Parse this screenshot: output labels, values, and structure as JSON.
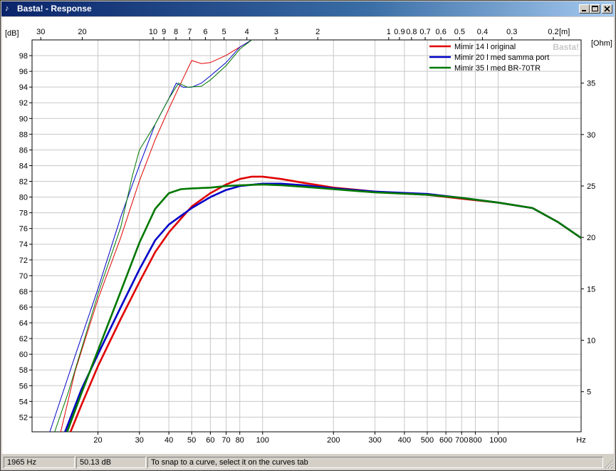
{
  "window": {
    "title": "Basta! - Response",
    "icon": "basta-logo-icon",
    "controls": [
      "minimize-icon",
      "maximize-icon",
      "close-icon"
    ]
  },
  "chart_data": {
    "type": "line",
    "watermark": "Basta!",
    "xscale": "log",
    "xlim": [
      10.5,
      2250
    ],
    "x_unit": "Hz",
    "x_ticks": [
      {
        "value": 20,
        "label": "20"
      },
      {
        "value": 30,
        "label": "30"
      },
      {
        "value": 40,
        "label": "40"
      },
      {
        "value": 50,
        "label": "50"
      },
      {
        "value": 60,
        "label": "60"
      },
      {
        "value": 70,
        "label": "70"
      },
      {
        "value": 80,
        "label": "80"
      },
      {
        "value": 100,
        "label": "100"
      },
      {
        "value": 200,
        "label": "200"
      },
      {
        "value": 300,
        "label": "300"
      },
      {
        "value": 400,
        "label": "400"
      },
      {
        "value": 500,
        "label": "500"
      },
      {
        "value": 600,
        "label": "600"
      },
      {
        "value": 700,
        "label": "700"
      },
      {
        "value": 800,
        "label": "800"
      },
      {
        "value": 1000,
        "label": "1000"
      }
    ],
    "wavelength_unit": "[m]",
    "wavelength_ticks": [
      {
        "value": 30,
        "label": "30"
      },
      {
        "value": 20,
        "label": "20"
      },
      {
        "value": 10,
        "label": "10"
      },
      {
        "value": 9,
        "label": "9"
      },
      {
        "value": 8,
        "label": "8"
      },
      {
        "value": 7,
        "label": "7"
      },
      {
        "value": 6,
        "label": "6"
      },
      {
        "value": 5,
        "label": "5"
      },
      {
        "value": 4,
        "label": "4"
      },
      {
        "value": 3,
        "label": "3"
      },
      {
        "value": 2,
        "label": "2"
      },
      {
        "value": 1,
        "label": "1"
      },
      {
        "value": 0.9,
        "label": "0.9"
      },
      {
        "value": 0.8,
        "label": "0.8"
      },
      {
        "value": 0.7,
        "label": "0.7"
      },
      {
        "value": 0.6,
        "label": "0.6"
      },
      {
        "value": 0.5,
        "label": "0.5"
      },
      {
        "value": 0.4,
        "label": "0.4"
      },
      {
        "value": 0.3,
        "label": "0.3"
      },
      {
        "value": 0.2,
        "label": "0.2"
      }
    ],
    "y_left": {
      "unit": "[dB]",
      "ylim": [
        50.13,
        100
      ],
      "ticks": [
        "52",
        "54",
        "56",
        "58",
        "60",
        "62",
        "64",
        "66",
        "68",
        "70",
        "72",
        "74",
        "76",
        "78",
        "80",
        "82",
        "84",
        "86",
        "88",
        "90",
        "92",
        "94",
        "96",
        "98"
      ]
    },
    "y_right": {
      "unit": "[Ohm]",
      "ylim": [
        1.1,
        39.2
      ],
      "ticks": [
        "5",
        "10",
        "15",
        "20",
        "25",
        "30",
        "35"
      ]
    },
    "grid": true,
    "legend_position": "top-right",
    "series": [
      {
        "name": "Mimir 14 l original",
        "color": "#e00000",
        "spl": [
          [
            15.3,
            50.13
          ],
          [
            17,
            53.5
          ],
          [
            20,
            58.5
          ],
          [
            25,
            64.5
          ],
          [
            30,
            69.2
          ],
          [
            35,
            73
          ],
          [
            40,
            75.5
          ],
          [
            50,
            78.8
          ],
          [
            60,
            80.5
          ],
          [
            70,
            81.6
          ],
          [
            80,
            82.3
          ],
          [
            90,
            82.6
          ],
          [
            100,
            82.6
          ],
          [
            120,
            82.3
          ],
          [
            150,
            81.8
          ],
          [
            200,
            81.2
          ],
          [
            300,
            80.7
          ],
          [
            500,
            80.3
          ],
          [
            700,
            79.8
          ],
          [
            1000,
            79.3
          ],
          [
            1400,
            78.6
          ],
          [
            1800,
            76.8
          ],
          [
            2250,
            74.8
          ]
        ],
        "impedance": [
          [
            13.9,
            1.1
          ],
          [
            16,
            7
          ],
          [
            20,
            14
          ],
          [
            25,
            20
          ],
          [
            30,
            25.5
          ],
          [
            35,
            29.5
          ],
          [
            40,
            32.5
          ],
          [
            45,
            35
          ],
          [
            50,
            37.2
          ],
          [
            55,
            36.9
          ],
          [
            60,
            37
          ],
          [
            70,
            37.7
          ],
          [
            80,
            38.5
          ],
          [
            90,
            39.2
          ]
        ]
      },
      {
        "name": "Mimir 20 l med samma port",
        "color": "#0000c8",
        "spl": [
          [
            14.5,
            50.13
          ],
          [
            17,
            55.5
          ],
          [
            20,
            60
          ],
          [
            25,
            66
          ],
          [
            30,
            70.8
          ],
          [
            35,
            74.5
          ],
          [
            40,
            76.5
          ],
          [
            50,
            78.6
          ],
          [
            60,
            80
          ],
          [
            70,
            80.9
          ],
          [
            80,
            81.4
          ],
          [
            100,
            81.7
          ],
          [
            120,
            81.7
          ],
          [
            150,
            81.5
          ],
          [
            200,
            81.1
          ],
          [
            300,
            80.7
          ],
          [
            500,
            80.4
          ],
          [
            700,
            79.9
          ],
          [
            1000,
            79.3
          ],
          [
            1400,
            78.6
          ],
          [
            1800,
            76.8
          ],
          [
            2250,
            74.8
          ]
        ],
        "impedance": [
          [
            12.5,
            1.1
          ],
          [
            14,
            4.5
          ],
          [
            16,
            8.5
          ],
          [
            20,
            15
          ],
          [
            25,
            22
          ],
          [
            30,
            27
          ],
          [
            35,
            31
          ],
          [
            40,
            33.5
          ],
          [
            43,
            35
          ],
          [
            46,
            34.6
          ],
          [
            50,
            34.6
          ],
          [
            55,
            35
          ],
          [
            60,
            35.7
          ],
          [
            70,
            37
          ],
          [
            80,
            38.5
          ],
          [
            90,
            39.2
          ]
        ]
      },
      {
        "name": "Mimir 35 l med BR-70TR",
        "color": "#007800",
        "spl": [
          [
            14.8,
            50.13
          ],
          [
            17,
            55
          ],
          [
            20,
            60.5
          ],
          [
            25,
            68
          ],
          [
            30,
            74.2
          ],
          [
            35,
            78.5
          ],
          [
            40,
            80.5
          ],
          [
            45,
            81
          ],
          [
            50,
            81.1
          ],
          [
            60,
            81.2
          ],
          [
            70,
            81.4
          ],
          [
            80,
            81.5
          ],
          [
            100,
            81.6
          ],
          [
            120,
            81.5
          ],
          [
            150,
            81.3
          ],
          [
            200,
            81
          ],
          [
            300,
            80.6
          ],
          [
            500,
            80.3
          ],
          [
            700,
            79.9
          ],
          [
            1000,
            79.3
          ],
          [
            1400,
            78.6
          ],
          [
            1800,
            76.8
          ],
          [
            2250,
            74.8
          ]
        ],
        "impedance": [
          [
            13.1,
            1.1
          ],
          [
            15,
            5
          ],
          [
            18,
            11
          ],
          [
            20,
            14.5
          ],
          [
            25,
            21
          ],
          [
            28,
            26
          ],
          [
            30,
            28.5
          ],
          [
            35,
            31
          ],
          [
            40,
            33.5
          ],
          [
            44,
            35
          ],
          [
            48,
            34.6
          ],
          [
            55,
            34.7
          ],
          [
            60,
            35.3
          ],
          [
            70,
            36.7
          ],
          [
            80,
            38.3
          ],
          [
            90,
            39.2
          ]
        ]
      }
    ]
  },
  "statusbar": {
    "frequency": "1965 Hz",
    "level": "50.13 dB",
    "hint": "To snap to a curve, select it on the curves tab"
  }
}
